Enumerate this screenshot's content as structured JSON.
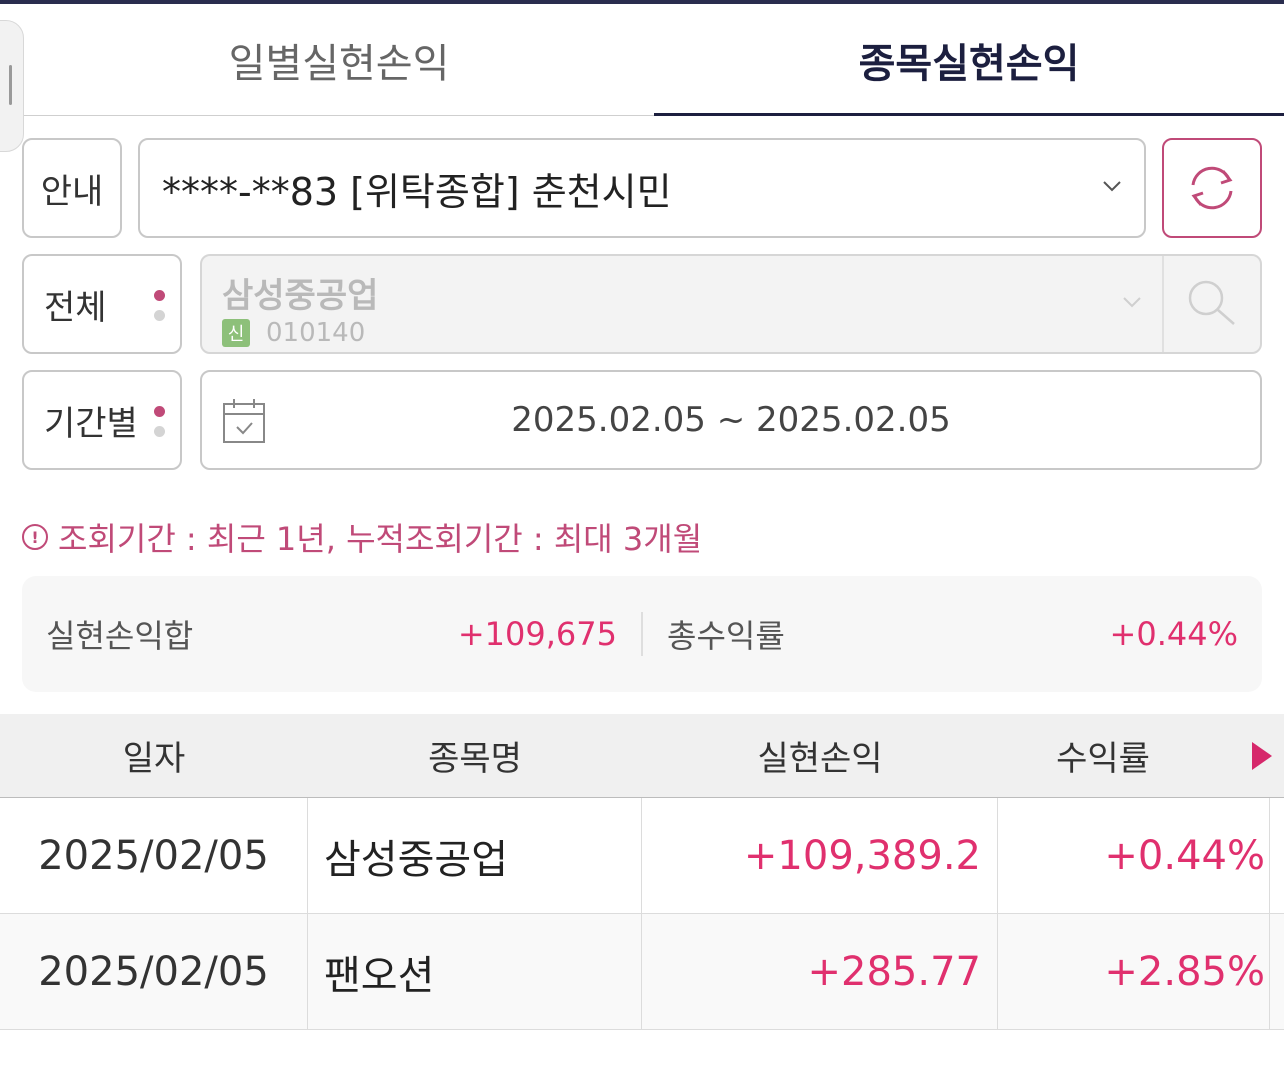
{
  "tabs": [
    {
      "label": "일별실현손익",
      "active": false
    },
    {
      "label": "종목실현손익",
      "active": true
    }
  ],
  "account": {
    "guide_label": "안내",
    "selected": "****-**83 [위탁종합] 춘천시민"
  },
  "stock_filter": {
    "mode_label": "전체",
    "stock_name": "삼성중공업",
    "badge": "신",
    "stock_code": "010140"
  },
  "period_filter": {
    "mode_label": "기간별",
    "date_range": "2025.02.05 ~ 2025.02.05"
  },
  "notice": {
    "icon": "!",
    "text": "조회기간 : 최근 1년, 누적조회기간 : 최대 3개월"
  },
  "summary": {
    "realized_label": "실현손익합",
    "realized_value": "+109,675",
    "return_label": "총수익률",
    "return_value": "+0.44%"
  },
  "table": {
    "headers": [
      "일자",
      "종목명",
      "실현손익",
      "수익률"
    ],
    "rows": [
      {
        "date": "2025/02/05",
        "name": "삼성중공업",
        "pl": "+109,389.2",
        "rate": "+0.44%"
      },
      {
        "date": "2025/02/05",
        "name": "팬오션",
        "pl": "+285.77",
        "rate": "+2.85%"
      }
    ]
  },
  "colors": {
    "accent": "#c04a78",
    "positive": "#e0306e",
    "navy": "#1c1f3f"
  },
  "icons": {
    "refresh": "refresh-icon",
    "search": "search-icon",
    "calendar": "calendar-icon",
    "dropdown": "chevron-down-icon",
    "notice": "info-icon",
    "scroll": "play-arrow-icon"
  }
}
